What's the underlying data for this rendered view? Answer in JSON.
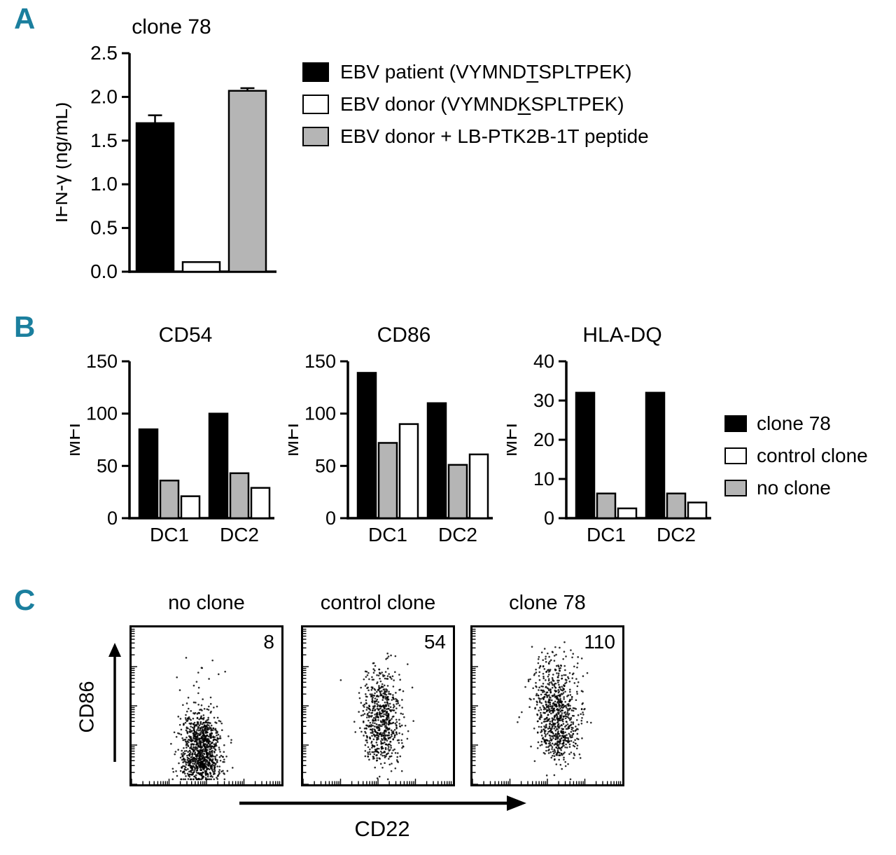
{
  "figure": {
    "panel_labels": {
      "a": "A",
      "b": "B",
      "c": "C"
    },
    "panel_label_color": "#1b7f9e"
  },
  "colors": {
    "black": "#000000",
    "white": "#ffffff",
    "gray": "#b5b5b5"
  },
  "panelA": {
    "legend": [
      {
        "color": "black",
        "prefix": "EBV patient (VYMND",
        "underlined": "T",
        "suffix": "SPLTPEK)"
      },
      {
        "color": "white",
        "prefix": "EBV donor (VYMND",
        "underlined": "K",
        "suffix": "SPLTPEK)"
      },
      {
        "color": "gray",
        "prefix": "EBV donor + LB-PTK2B-1T peptide",
        "underlined": "",
        "suffix": ""
      }
    ]
  },
  "panelB": {
    "legend": [
      {
        "color": "black",
        "label": "clone 78"
      },
      {
        "color": "white",
        "label": "control clone"
      },
      {
        "color": "gray",
        "label": "no clone"
      }
    ]
  },
  "chart_data": [
    {
      "id": "panelA-ifng",
      "type": "bar",
      "title": "clone 78",
      "ylabel": "IFN-γ (ng/mL)",
      "ylim": [
        0,
        2.5
      ],
      "ytick_labels": [
        "0.0",
        "0.5",
        "1.0",
        "1.5",
        "2.0",
        "2.5"
      ],
      "categories": [
        "EBV patient (VYMNDTSPLTPEK)",
        "EBV donor (VYMNDKSPLTPEK)",
        "EBV donor + LB-PTK2B-1T peptide"
      ],
      "values": [
        1.7,
        0.11,
        2.07
      ],
      "errors": [
        0.09,
        0,
        0.03
      ],
      "bar_colors": [
        "black",
        "white",
        "gray"
      ]
    },
    {
      "id": "panelB-cd54",
      "type": "bar",
      "title": "CD54",
      "ylabel": "MFI",
      "ylim": [
        0,
        150
      ],
      "ytick_labels": [
        "0",
        "50",
        "100",
        "150"
      ],
      "categories": [
        "DC1",
        "DC2"
      ],
      "series": [
        {
          "name": "clone 78",
          "color": "black",
          "values": [
            85,
            100
          ]
        },
        {
          "name": "no clone",
          "color": "gray",
          "values": [
            36,
            43
          ]
        },
        {
          "name": "control clone",
          "color": "white",
          "values": [
            21,
            29
          ]
        }
      ]
    },
    {
      "id": "panelB-cd86",
      "type": "bar",
      "title": "CD86",
      "ylabel": "MFI",
      "ylim": [
        0,
        150
      ],
      "ytick_labels": [
        "0",
        "50",
        "100",
        "150"
      ],
      "categories": [
        "DC1",
        "DC2"
      ],
      "series": [
        {
          "name": "clone 78",
          "color": "black",
          "values": [
            139,
            110
          ]
        },
        {
          "name": "no clone",
          "color": "gray",
          "values": [
            72,
            51
          ]
        },
        {
          "name": "control clone",
          "color": "white",
          "values": [
            90,
            61
          ]
        }
      ]
    },
    {
      "id": "panelB-hladq",
      "type": "bar",
      "title": "HLA-DQ",
      "ylabel": "MFI",
      "ylim": [
        0,
        40
      ],
      "ytick_labels": [
        "0",
        "10",
        "20",
        "30",
        "40"
      ],
      "categories": [
        "DC1",
        "DC2"
      ],
      "series": [
        {
          "name": "clone 78",
          "color": "black",
          "values": [
            32,
            32
          ]
        },
        {
          "name": "no clone",
          "color": "gray",
          "values": [
            6.3,
            6.3
          ]
        },
        {
          "name": "control clone",
          "color": "white",
          "values": [
            2.5,
            4
          ]
        }
      ]
    },
    {
      "id": "panelC-flow",
      "type": "scatter",
      "xlabel": "CD22",
      "ylabel": "CD86",
      "panels": [
        {
          "title": "no clone",
          "gate_value": 8
        },
        {
          "title": "control clone",
          "gate_value": 54
        },
        {
          "title": "clone 78",
          "gate_value": 110
        }
      ]
    }
  ]
}
